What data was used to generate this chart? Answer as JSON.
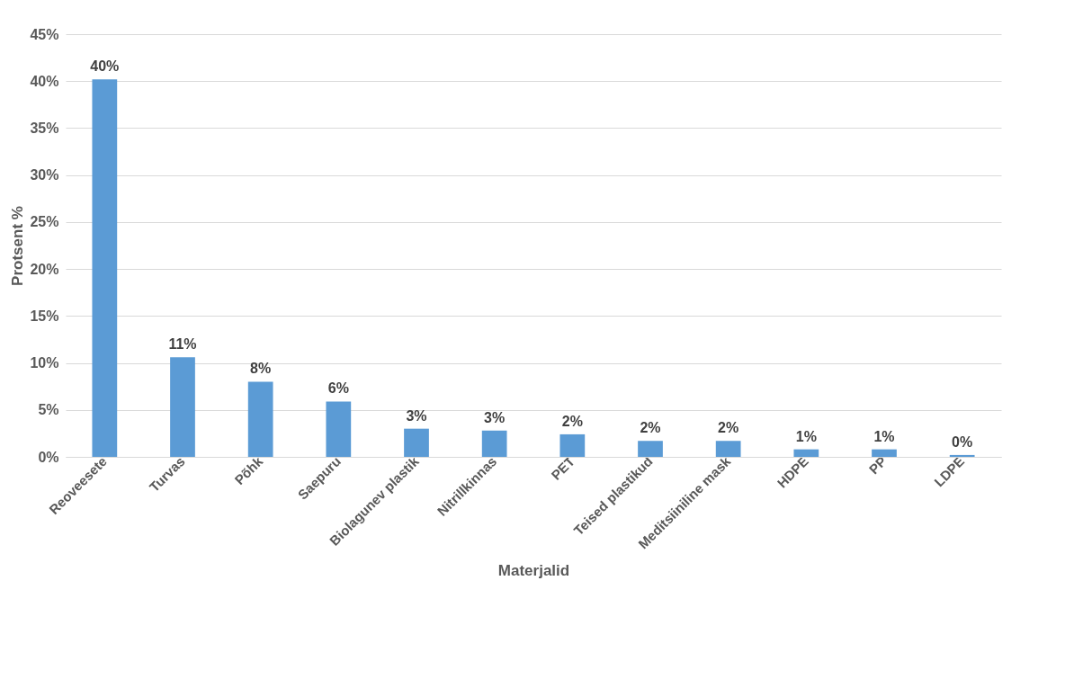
{
  "chart_data": {
    "type": "bar",
    "xlabel": "Materjalid",
    "ylabel": "Protsent %",
    "categories": [
      "Reoveesete",
      "Turvas",
      "Põhk",
      "Saepuru",
      "Biolagunev plastik",
      "Nitrillkinnas",
      "PET",
      "Teised plastikud",
      "Meditsiiniline mask",
      "HDPE",
      "PP",
      "LDPE"
    ],
    "values": [
      40.2,
      10.6,
      8.0,
      5.9,
      3.0,
      2.8,
      2.4,
      1.7,
      1.7,
      0.8,
      0.8,
      0.2
    ],
    "value_labels": [
      "40%",
      "11%",
      "8%",
      "6%",
      "3%",
      "3%",
      "2%",
      "2%",
      "2%",
      "1%",
      "1%",
      "0%"
    ],
    "color": "#5b9bd5",
    "ylim": [
      0,
      45
    ],
    "yticks": [
      {
        "value": 0,
        "label": "0%"
      },
      {
        "value": 5,
        "label": "5%"
      },
      {
        "value": 10,
        "label": "10%"
      },
      {
        "value": 15,
        "label": "15%"
      },
      {
        "value": 20,
        "label": "20%"
      },
      {
        "value": 25,
        "label": "25%"
      },
      {
        "value": 30,
        "label": "30%"
      },
      {
        "value": 35,
        "label": "35%"
      },
      {
        "value": 40,
        "label": "40%"
      },
      {
        "value": 45,
        "label": "45%"
      }
    ],
    "grid": "y"
  }
}
